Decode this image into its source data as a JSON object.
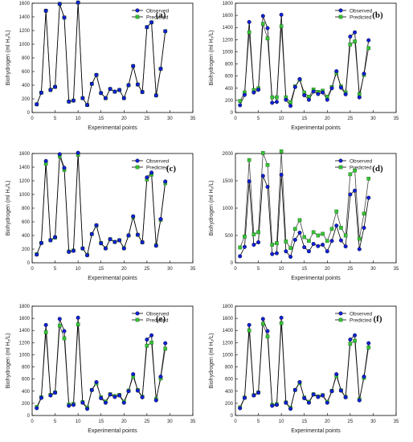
{
  "chart_data": [
    {
      "type": "line",
      "panel": "(a)",
      "xlabel": "Experimental points",
      "ylabel": "Biohydrogen (ml H₂/L)",
      "xlim": [
        0,
        35
      ],
      "xticks": [
        0,
        5,
        10,
        15,
        20,
        25,
        30,
        35
      ],
      "ylim": [
        0,
        1600
      ],
      "yticks": [
        0,
        200,
        400,
        600,
        800,
        1000,
        1200,
        1400,
        1600
      ],
      "legend_position": "top-right",
      "x": [
        1,
        2,
        3,
        4,
        5,
        6,
        7,
        8,
        9,
        10,
        11,
        12,
        13,
        14,
        15,
        16,
        17,
        18,
        19,
        20,
        21,
        22,
        23,
        24,
        25,
        26,
        27,
        28,
        29
      ],
      "series": [
        {
          "name": "Observed",
          "marker_color": "#1020d8",
          "values": [
            120,
            290,
            1490,
            330,
            375,
            1590,
            1390,
            160,
            175,
            1610,
            210,
            110,
            420,
            550,
            285,
            210,
            345,
            305,
            330,
            210,
            400,
            680,
            410,
            300,
            1250,
            1320,
            250,
            640,
            1190
          ]
        },
        {
          "name": "Predicted",
          "marker_color": "#35c435",
          "values": [
            120,
            290,
            1490,
            330,
            375,
            1590,
            1390,
            160,
            175,
            1610,
            210,
            110,
            420,
            550,
            285,
            210,
            345,
            305,
            330,
            210,
            400,
            680,
            410,
            300,
            1250,
            1320,
            250,
            640,
            1190
          ]
        }
      ]
    },
    {
      "type": "line",
      "panel": "(b)",
      "xlabel": "Experimental points",
      "ylabel": "Biohydrogen (ml H₂/L)",
      "xlim": [
        0,
        35
      ],
      "xticks": [
        0,
        5,
        10,
        15,
        20,
        25,
        30,
        35
      ],
      "ylim": [
        0,
        1800
      ],
      "yticks": [
        0,
        200,
        400,
        600,
        800,
        1000,
        1200,
        1400,
        1600,
        1800
      ],
      "legend_position": "top-right",
      "x": [
        1,
        2,
        3,
        4,
        5,
        6,
        7,
        8,
        9,
        10,
        11,
        12,
        13,
        14,
        15,
        16,
        17,
        18,
        19,
        20,
        21,
        22,
        23,
        24,
        25,
        26,
        27,
        28,
        29
      ],
      "series": [
        {
          "name": "Observed",
          "marker_color": "#1020d8",
          "values": [
            120,
            290,
            1490,
            330,
            375,
            1590,
            1390,
            160,
            175,
            1610,
            210,
            110,
            420,
            550,
            285,
            210,
            345,
            305,
            330,
            210,
            400,
            680,
            410,
            300,
            1250,
            1320,
            250,
            640,
            1190
          ]
        },
        {
          "name": "Predicted",
          "marker_color": "#35c435",
          "values": [
            190,
            330,
            1320,
            370,
            400,
            1460,
            1220,
            250,
            250,
            1420,
            250,
            170,
            430,
            540,
            330,
            260,
            380,
            340,
            360,
            260,
            420,
            650,
            430,
            330,
            1120,
            1170,
            300,
            620,
            1060
          ]
        }
      ]
    },
    {
      "type": "line",
      "panel": "(c)",
      "xlabel": "Experimental points",
      "ylabel": "Biohydrogen (ml H₂/L)",
      "xlim": [
        0,
        35
      ],
      "xticks": [
        0,
        5,
        10,
        15,
        20,
        25,
        30,
        35
      ],
      "ylim": [
        0,
        1600
      ],
      "yticks": [
        0,
        200,
        400,
        600,
        800,
        1000,
        1200,
        1400,
        1600
      ],
      "legend_position": "top-right",
      "x": [
        1,
        2,
        3,
        4,
        5,
        6,
        7,
        8,
        9,
        10,
        11,
        12,
        13,
        14,
        15,
        16,
        17,
        18,
        19,
        20,
        21,
        22,
        23,
        24,
        25,
        26,
        27,
        28,
        29
      ],
      "series": [
        {
          "name": "Observed",
          "marker_color": "#1020d8",
          "values": [
            120,
            290,
            1490,
            330,
            375,
            1590,
            1390,
            160,
            175,
            1610,
            210,
            110,
            420,
            550,
            285,
            210,
            345,
            305,
            330,
            210,
            400,
            680,
            410,
            300,
            1250,
            1320,
            250,
            640,
            1190
          ]
        },
        {
          "name": "Predicted",
          "marker_color": "#35c435",
          "values": [
            125,
            290,
            1450,
            330,
            370,
            1560,
            1360,
            165,
            180,
            1580,
            210,
            115,
            420,
            545,
            290,
            215,
            345,
            305,
            330,
            215,
            400,
            670,
            410,
            300,
            1220,
            1290,
            255,
            630,
            1165
          ]
        }
      ]
    },
    {
      "type": "line",
      "panel": "(d)",
      "xlabel": "Experimental points",
      "ylabel": "Biohydrogen (ml H₂/L)",
      "xlim": [
        0,
        35
      ],
      "xticks": [
        0,
        5,
        10,
        15,
        20,
        25,
        30,
        35
      ],
      "ylim": [
        0,
        2000
      ],
      "yticks": [
        0,
        500,
        1000,
        1500,
        2000
      ],
      "legend_position": "top-right",
      "x": [
        1,
        2,
        3,
        4,
        5,
        6,
        7,
        8,
        9,
        10,
        11,
        12,
        13,
        14,
        15,
        16,
        17,
        18,
        19,
        20,
        21,
        22,
        23,
        24,
        25,
        26,
        27,
        28,
        29
      ],
      "series": [
        {
          "name": "Observed",
          "marker_color": "#1020d8",
          "values": [
            120,
            290,
            1490,
            330,
            375,
            1590,
            1390,
            160,
            175,
            1610,
            210,
            110,
            420,
            550,
            285,
            210,
            345,
            305,
            330,
            210,
            400,
            680,
            410,
            300,
            1250,
            1320,
            250,
            640,
            1190
          ]
        },
        {
          "name": "Predicted",
          "marker_color": "#35c435",
          "values": [
            280,
            480,
            1880,
            520,
            560,
            2010,
            1790,
            330,
            360,
            2040,
            390,
            270,
            620,
            780,
            470,
            400,
            560,
            500,
            530,
            400,
            620,
            940,
            640,
            500,
            1620,
            1690,
            440,
            900,
            1540
          ]
        }
      ]
    },
    {
      "type": "line",
      "panel": "(e)",
      "xlabel": "Experimental points",
      "ylabel": "Biohydrogen (ml H₂/L)",
      "xlim": [
        0,
        35
      ],
      "xticks": [
        0,
        5,
        10,
        15,
        20,
        25,
        30,
        35
      ],
      "ylim": [
        0,
        1800
      ],
      "yticks": [
        0,
        200,
        400,
        600,
        800,
        1000,
        1200,
        1400,
        1600,
        1800
      ],
      "legend_position": "top-right",
      "x": [
        1,
        2,
        3,
        4,
        5,
        6,
        7,
        8,
        9,
        10,
        11,
        12,
        13,
        14,
        15,
        16,
        17,
        18,
        19,
        20,
        21,
        22,
        23,
        24,
        25,
        26,
        27,
        28,
        29
      ],
      "series": [
        {
          "name": "Observed",
          "marker_color": "#1020d8",
          "values": [
            120,
            290,
            1490,
            330,
            375,
            1590,
            1390,
            160,
            175,
            1610,
            210,
            110,
            420,
            550,
            285,
            210,
            345,
            305,
            330,
            210,
            400,
            680,
            410,
            300,
            1250,
            1320,
            250,
            640,
            1190
          ]
        },
        {
          "name": "Predicted",
          "marker_color": "#35c435",
          "values": [
            140,
            300,
            1370,
            340,
            380,
            1480,
            1270,
            180,
            190,
            1500,
            220,
            130,
            420,
            530,
            300,
            230,
            350,
            320,
            340,
            230,
            410,
            640,
            420,
            310,
            1150,
            1200,
            270,
            610,
            1100
          ]
        }
      ]
    },
    {
      "type": "line",
      "panel": "(f)",
      "xlabel": "Experimental points",
      "ylabel": "Biohydrogen (ml H₂/L)",
      "xlim": [
        0,
        35
      ],
      "xticks": [
        0,
        5,
        10,
        15,
        20,
        25,
        30,
        35
      ],
      "ylim": [
        0,
        1800
      ],
      "yticks": [
        0,
        200,
        400,
        600,
        800,
        1000,
        1200,
        1400,
        1600,
        1800
      ],
      "legend_position": "top-right",
      "x": [
        1,
        2,
        3,
        4,
        5,
        6,
        7,
        8,
        9,
        10,
        11,
        12,
        13,
        14,
        15,
        16,
        17,
        18,
        19,
        20,
        21,
        22,
        23,
        24,
        25,
        26,
        27,
        28,
        29
      ],
      "series": [
        {
          "name": "Observed",
          "marker_color": "#1020d8",
          "values": [
            120,
            290,
            1490,
            330,
            375,
            1590,
            1390,
            160,
            175,
            1610,
            210,
            110,
            420,
            550,
            285,
            210,
            345,
            305,
            330,
            210,
            400,
            680,
            410,
            300,
            1250,
            1320,
            250,
            640,
            1190
          ]
        },
        {
          "name": "Predicted",
          "marker_color": "#35c435",
          "values": [
            135,
            295,
            1400,
            335,
            380,
            1510,
            1300,
            175,
            185,
            1520,
            215,
            125,
            420,
            535,
            295,
            225,
            350,
            315,
            335,
            225,
            405,
            650,
            415,
            305,
            1180,
            1230,
            265,
            620,
            1120
          ]
        }
      ]
    }
  ]
}
